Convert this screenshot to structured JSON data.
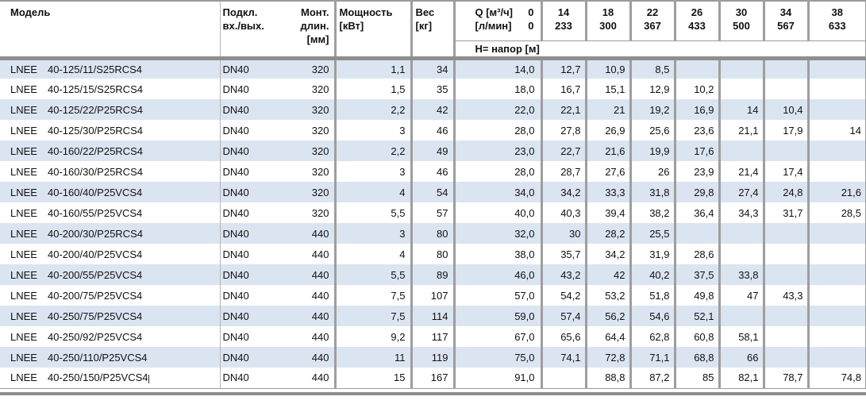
{
  "colors": {
    "row_alt_background": "#dbe5f1",
    "grid_line_gray": "#9e9e9e",
    "thick_bar_gray": "#8e8e8e",
    "text": "#111111"
  },
  "table": {
    "headers": {
      "model": "Модель",
      "conn": [
        "Подкл.",
        "вх./вых."
      ],
      "length": [
        "Монт.",
        "длин.",
        "[мм]"
      ],
      "power": [
        "Мощность",
        "[кВт]"
      ],
      "weight": [
        "Вес",
        "[кг]"
      ],
      "flow_label": [
        {
          "label": "Q [м³/ч]",
          "value": "0"
        },
        {
          "label": "[л/мин]",
          "value": "0"
        }
      ],
      "flow_columns": [
        {
          "m3h": "14",
          "lmin": "233"
        },
        {
          "m3h": "18",
          "lmin": "300"
        },
        {
          "m3h": "22",
          "lmin": "367"
        },
        {
          "m3h": "26",
          "lmin": "433"
        },
        {
          "m3h": "30",
          "lmin": "500"
        },
        {
          "m3h": "34",
          "lmin": "567"
        },
        {
          "m3h": "38",
          "lmin": "633"
        }
      ],
      "head_row_label": "H= напор [м]"
    },
    "rows": [
      {
        "series": "LNEE",
        "model": "40-125/11/S25RCS4",
        "conn": "DN40",
        "length": "320",
        "power": "1,1",
        "weight": "34",
        "h": [
          "14,0",
          "12,7",
          "10,9",
          "8,5",
          "",
          "",
          "",
          ""
        ]
      },
      {
        "series": "LNEE",
        "model": "40-125/15/S25RCS4",
        "conn": "DN40",
        "length": "320",
        "power": "1,5",
        "weight": "35",
        "h": [
          "18,0",
          "16,7",
          "15,1",
          "12,9",
          "10,2",
          "",
          "",
          ""
        ]
      },
      {
        "series": "LNEE",
        "model": "40-125/22/P25RCS4",
        "conn": "DN40",
        "length": "320",
        "power": "2,2",
        "weight": "42",
        "h": [
          "22,0",
          "22,1",
          "21",
          "19,2",
          "16,9",
          "14",
          "10,4",
          ""
        ]
      },
      {
        "series": "LNEE",
        "model": "40-125/30/P25RCS4",
        "conn": "DN40",
        "length": "320",
        "power": "3",
        "weight": "46",
        "h": [
          "28,0",
          "27,8",
          "26,9",
          "25,6",
          "23,6",
          "21,1",
          "17,9",
          "14"
        ]
      },
      {
        "series": "LNEE",
        "model": "40-160/22/P25RCS4",
        "conn": "DN40",
        "length": "320",
        "power": "2,2",
        "weight": "49",
        "h": [
          "23,0",
          "22,7",
          "21,6",
          "19,9",
          "17,6",
          "",
          "",
          ""
        ]
      },
      {
        "series": "LNEE",
        "model": "40-160/30/P25RCS4",
        "conn": "DN40",
        "length": "320",
        "power": "3",
        "weight": "46",
        "h": [
          "28,0",
          "28,7",
          "27,6",
          "26",
          "23,9",
          "21,4",
          "17,4",
          ""
        ]
      },
      {
        "series": "LNEE",
        "model": "40-160/40/P25VCS4",
        "conn": "DN40",
        "length": "320",
        "power": "4",
        "weight": "54",
        "h": [
          "34,0",
          "34,2",
          "33,3",
          "31,8",
          "29,8",
          "27,4",
          "24,8",
          "21,6"
        ]
      },
      {
        "series": "LNEE",
        "model": "40-160/55/P25VCS4",
        "conn": "DN40",
        "length": "320",
        "power": "5,5",
        "weight": "57",
        "h": [
          "40,0",
          "40,3",
          "39,4",
          "38,2",
          "36,4",
          "34,3",
          "31,7",
          "28,5"
        ]
      },
      {
        "series": "LNEE",
        "model": "40-200/30/P25RCS4",
        "conn": "DN40",
        "length": "440",
        "power": "3",
        "weight": "80",
        "h": [
          "32,0",
          "30",
          "28,2",
          "25,5",
          "",
          "",
          "",
          ""
        ]
      },
      {
        "series": "LNEE",
        "model": "40-200/40/P25VCS4",
        "conn": "DN40",
        "length": "440",
        "power": "4",
        "weight": "80",
        "h": [
          "38,0",
          "35,7",
          "34,2",
          "31,9",
          "28,6",
          "",
          "",
          ""
        ]
      },
      {
        "series": "LNEE",
        "model": "40-200/55/P25VCS4",
        "conn": "DN40",
        "length": "440",
        "power": "5,5",
        "weight": "89",
        "h": [
          "46,0",
          "43,2",
          "42",
          "40,2",
          "37,5",
          "33,8",
          "",
          ""
        ]
      },
      {
        "series": "LNEE",
        "model": "40-200/75/P25VCS4",
        "conn": "DN40",
        "length": "440",
        "power": "7,5",
        "weight": "107",
        "h": [
          "57,0",
          "54,2",
          "53,2",
          "51,8",
          "49,8",
          "47",
          "43,3",
          ""
        ]
      },
      {
        "series": "LNEE",
        "model": "40-250/75/P25VCS4",
        "conn": "DN40",
        "length": "440",
        "power": "7,5",
        "weight": "114",
        "h": [
          "59,0",
          "57,4",
          "56,2",
          "54,6",
          "52,1",
          "",
          "",
          ""
        ]
      },
      {
        "series": "LNEE",
        "model": "40-250/92/P25VCS4",
        "conn": "DN40",
        "length": "440",
        "power": "9,2",
        "weight": "117",
        "h": [
          "67,0",
          "65,6",
          "64,4",
          "62,8",
          "60,8",
          "58,1",
          "",
          ""
        ]
      },
      {
        "series": "LNEE",
        "model": "40-250/110/P25VCS4",
        "conn": "DN40",
        "length": "440",
        "power": "11",
        "weight": "119",
        "h": [
          "75,0",
          "74,1",
          "72,8",
          "71,1",
          "68,8",
          "66",
          "",
          ""
        ]
      },
      {
        "series": "LNEE",
        "model": "40-250/150/P25VCS4",
        "conn": "DN40",
        "length": "440",
        "power": "15",
        "weight": "167",
        "caret": true,
        "h": [
          "91,0",
          "",
          "88,8",
          "87,2",
          "85",
          "82,1",
          "78,7",
          "74,8"
        ]
      }
    ]
  }
}
